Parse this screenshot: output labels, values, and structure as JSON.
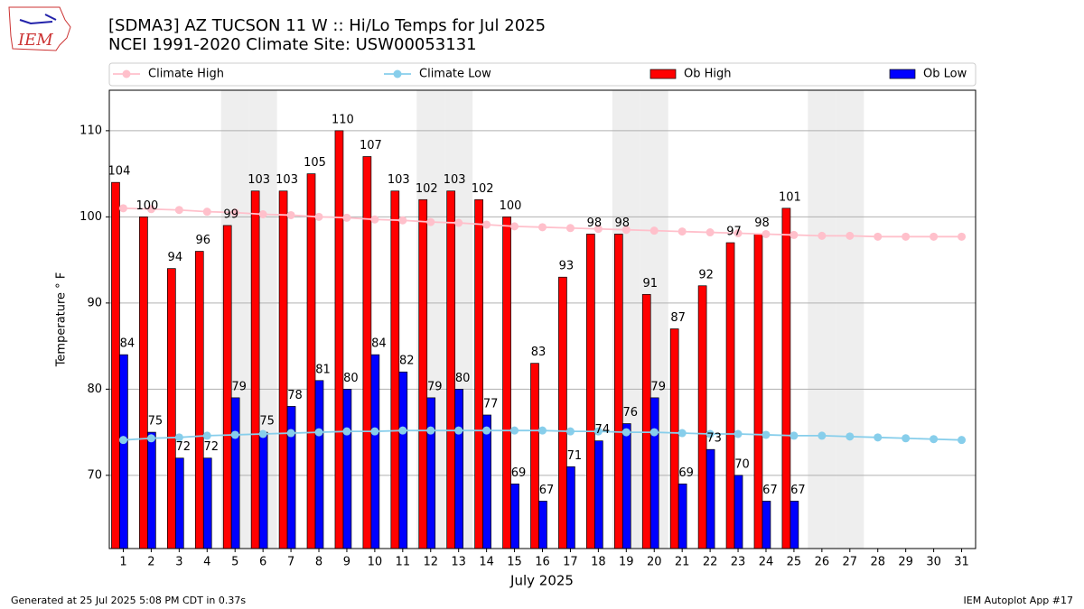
{
  "chart_data": {
    "type": "bar",
    "title": "[SDMA3] AZ TUCSON 11 W :: Hi/Lo Temps for Jul 2025",
    "subtitle": "NCEI 1991-2020 Climate Site: USW00053131",
    "logo_text": "IEM",
    "x_label": "July 2025",
    "y_label": "Temperature ° F",
    "footer_left": "Generated at 25 Jul 2025 5:08 PM CDT in 0.37s",
    "footer_right": "IEM Autoplot App #17",
    "x": [
      1,
      2,
      3,
      4,
      5,
      6,
      7,
      8,
      9,
      10,
      11,
      12,
      13,
      14,
      15,
      16,
      17,
      18,
      19,
      20,
      21,
      22,
      23,
      24,
      25,
      26,
      27,
      28,
      29,
      30,
      31
    ],
    "xlim": [
      0.5,
      31.5
    ],
    "xticks": [
      1,
      2,
      3,
      4,
      5,
      6,
      7,
      8,
      9,
      10,
      11,
      12,
      13,
      14,
      15,
      16,
      17,
      18,
      19,
      20,
      21,
      22,
      23,
      24,
      25,
      26,
      27,
      28,
      29,
      30,
      31
    ],
    "ylim": [
      61.5,
      114.7
    ],
    "yticks": [
      70,
      80,
      90,
      100,
      110
    ],
    "grid": true,
    "legend": "top",
    "shaded_days": [
      5,
      6,
      12,
      13,
      19,
      20,
      26,
      27
    ],
    "shade_color": "#eeeeee",
    "series": [
      {
        "name": "Climate High",
        "type": "line",
        "color": "#ffc0cb",
        "values": [
          101.0,
          100.9,
          100.8,
          100.6,
          100.5,
          100.3,
          100.2,
          100.0,
          99.9,
          99.7,
          99.6,
          99.4,
          99.3,
          99.1,
          98.9,
          98.8,
          98.7,
          98.6,
          98.5,
          98.4,
          98.3,
          98.2,
          98.1,
          98.0,
          97.9,
          97.8,
          97.8,
          97.7,
          97.7,
          97.7,
          97.7
        ]
      },
      {
        "name": "Climate Low",
        "type": "line",
        "color": "#87ceeb",
        "values": [
          74.1,
          74.3,
          74.4,
          74.6,
          74.7,
          74.8,
          74.9,
          75.0,
          75.1,
          75.1,
          75.2,
          75.2,
          75.2,
          75.2,
          75.2,
          75.2,
          75.1,
          75.1,
          75.0,
          75.0,
          74.9,
          74.8,
          74.8,
          74.7,
          74.6,
          74.6,
          74.5,
          74.4,
          74.3,
          74.2,
          74.1
        ]
      },
      {
        "name": "Ob High",
        "type": "bar",
        "color": "#ff0000",
        "values": [
          104,
          100,
          94,
          96,
          99,
          103,
          103,
          105,
          110,
          107,
          103,
          102,
          103,
          102,
          100,
          83,
          93,
          98,
          98,
          91,
          87,
          92,
          97,
          98,
          101,
          null,
          null,
          null,
          null,
          null,
          null
        ]
      },
      {
        "name": "Ob Low",
        "type": "bar",
        "color": "#0000ff",
        "values": [
          84,
          75,
          72,
          72,
          79,
          75,
          78,
          81,
          80,
          84,
          82,
          79,
          80,
          77,
          69,
          67,
          71,
          74,
          76,
          79,
          69,
          73,
          70,
          67,
          67,
          null,
          null,
          null,
          null,
          null,
          null
        ]
      }
    ]
  }
}
